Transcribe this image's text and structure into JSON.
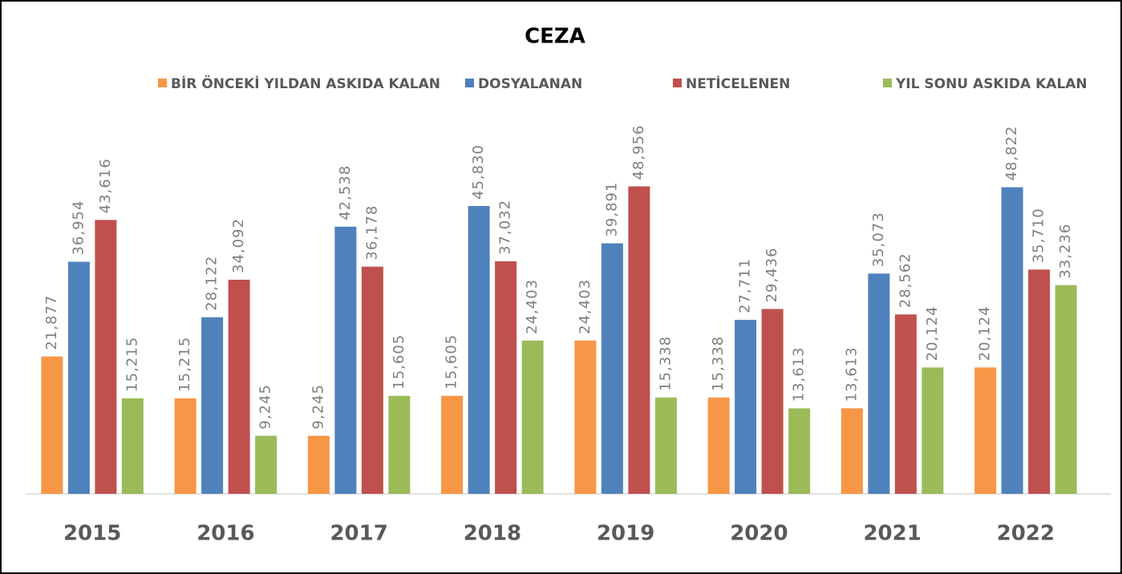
{
  "chart_data": {
    "type": "bar",
    "title": "CEZA",
    "categories": [
      "2015",
      "2016",
      "2017",
      "2018",
      "2019",
      "2020",
      "2021",
      "2022"
    ],
    "series": [
      {
        "name": "BİR ÖNCEKİ YILDAN ASKIDA KALAN",
        "color": "#f79646",
        "values": [
          21877,
          15215,
          9245,
          15605,
          24403,
          15338,
          13613,
          20124
        ],
        "value_labels": [
          "21,877",
          "15,215",
          "9,245",
          "15,605",
          "24,403",
          "15,338",
          "13,613",
          "20,124"
        ]
      },
      {
        "name": "DOSYALANAN",
        "color": "#4f81bd",
        "values": [
          36954,
          28122,
          42538,
          45830,
          39891,
          27711,
          35073,
          48822
        ],
        "value_labels": [
          "36,954",
          "28,122",
          "42,538",
          "45,830",
          "39,891",
          "27,711",
          "35,073",
          "48,822"
        ]
      },
      {
        "name": "NETİCELENEN",
        "color": "#c0504d",
        "values": [
          43616,
          34092,
          36178,
          37032,
          48956,
          29436,
          28562,
          35710
        ],
        "value_labels": [
          "43,616",
          "34,092",
          "36,178",
          "37,032",
          "48,956",
          "29,436",
          "28,562",
          "35,710"
        ]
      },
      {
        "name": "YIL SONU ASKIDA KALAN",
        "color": "#9bbb59",
        "values": [
          15215,
          9245,
          15605,
          24403,
          15338,
          13613,
          20124,
          33236
        ],
        "value_labels": [
          "15,215",
          "9,245",
          "15,605",
          "24,403",
          "15,338",
          "13,613",
          "20,124",
          "33,236"
        ]
      }
    ],
    "ylim": [
      0,
      60000
    ],
    "legend": "top"
  }
}
